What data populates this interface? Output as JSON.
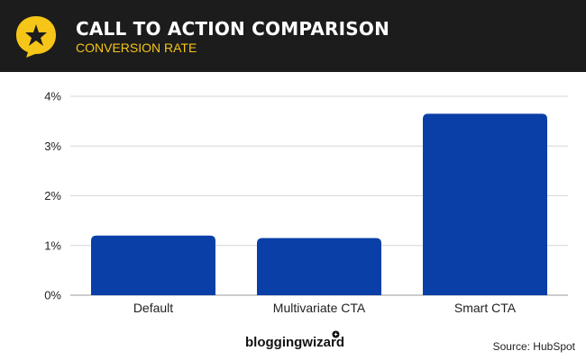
{
  "header": {
    "title": "CALL TO ACTION COMPARISON",
    "subtitle": "CONVERSION RATE"
  },
  "colors": {
    "header_bg": "#1c1c1c",
    "accent": "#f5c518",
    "bar": "#0a3fa8"
  },
  "chart_data": {
    "type": "bar",
    "title": "CALL TO ACTION COMPARISON",
    "subtitle": "CONVERSION RATE",
    "categories": [
      "Default",
      "Multivariate CTA",
      "Smart CTA"
    ],
    "values": [
      1.2,
      1.15,
      3.65
    ],
    "unit": "%",
    "ylim": [
      0,
      4
    ],
    "yticks": [
      0,
      1,
      2,
      3,
      4
    ],
    "ytick_labels": [
      "0%",
      "1%",
      "2%",
      "3%",
      "4%"
    ],
    "grid": true,
    "xlabel": "",
    "ylabel": ""
  },
  "footer": {
    "brand": "bloggingwizard",
    "source": "Source: HubSpot"
  }
}
